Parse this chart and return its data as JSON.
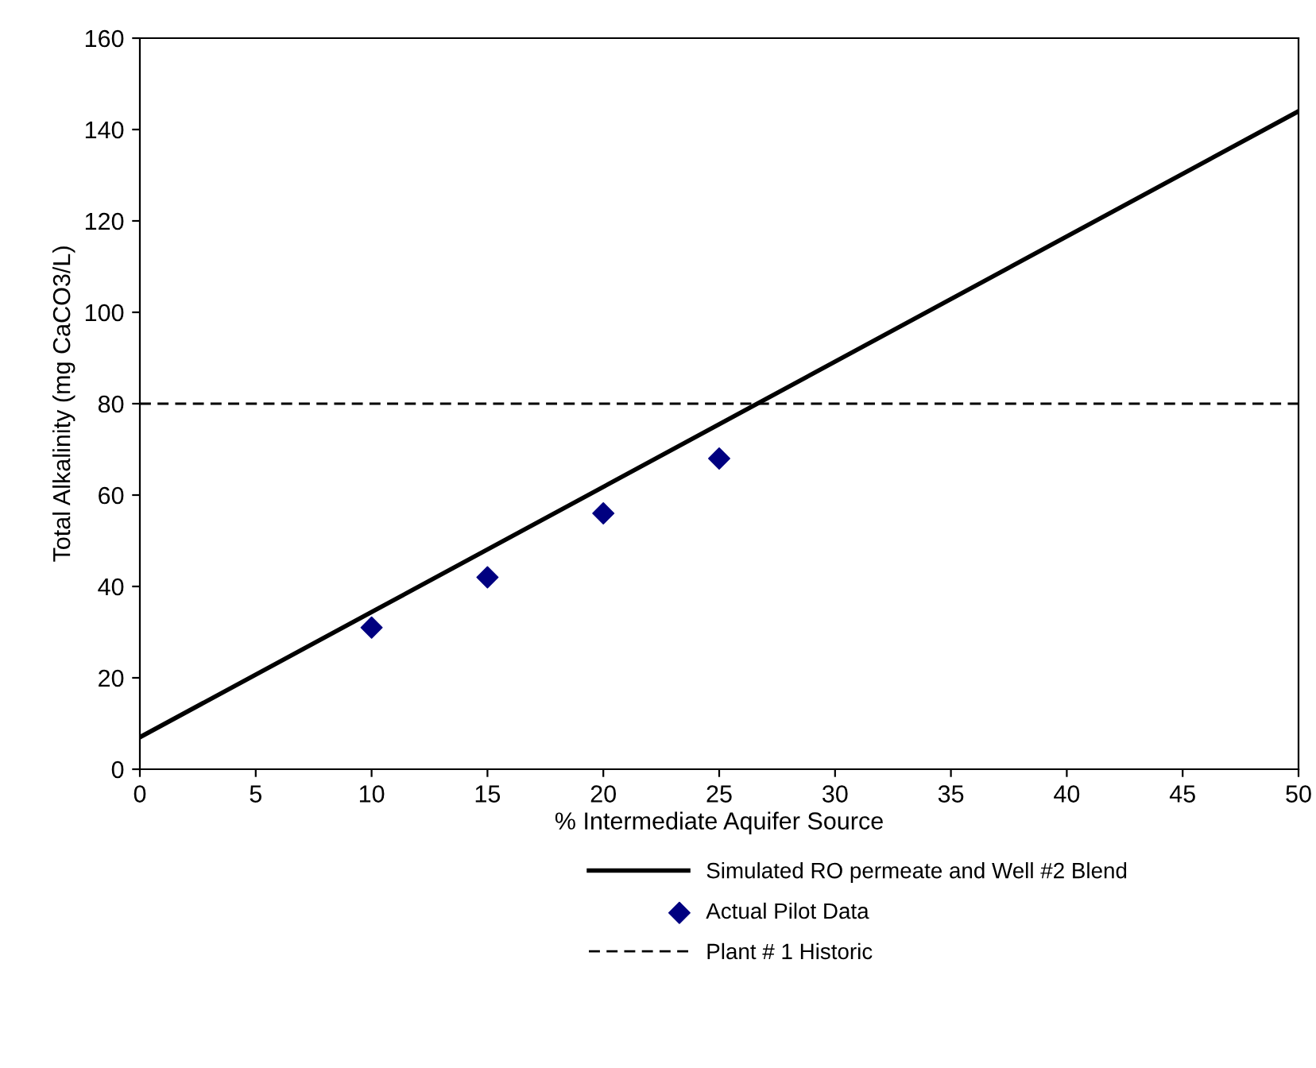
{
  "chart_data": {
    "type": "scatter",
    "xlabel": "% Intermediate Aquifer Source",
    "ylabel": "Total Alkalinity (mg CaCO3/L)",
    "xlim": [
      0,
      50
    ],
    "ylim": [
      0,
      160
    ],
    "xticks": [
      0,
      5,
      10,
      15,
      20,
      25,
      30,
      35,
      40,
      45,
      50
    ],
    "yticks": [
      0,
      20,
      40,
      60,
      80,
      100,
      120,
      140,
      160
    ],
    "grid": false,
    "legend": "bottom",
    "series": [
      {
        "name": "Simulated RO permeate and Well #2 Blend",
        "type": "line",
        "color": "#000000",
        "x": [
          0,
          50
        ],
        "values": [
          7,
          144
        ],
        "marker": "none",
        "line_style": "solid"
      },
      {
        "name": "Actual Pilot Data",
        "color": "#000080",
        "x": [
          10,
          15,
          20,
          25
        ],
        "values": [
          31,
          42,
          56,
          68
        ],
        "marker": "diamond"
      }
    ],
    "ref_lines": [
      {
        "axis": "y",
        "value": 80,
        "label": "Plant # 1 Historic",
        "color": "#000000",
        "line_style": "dashed"
      }
    ]
  }
}
